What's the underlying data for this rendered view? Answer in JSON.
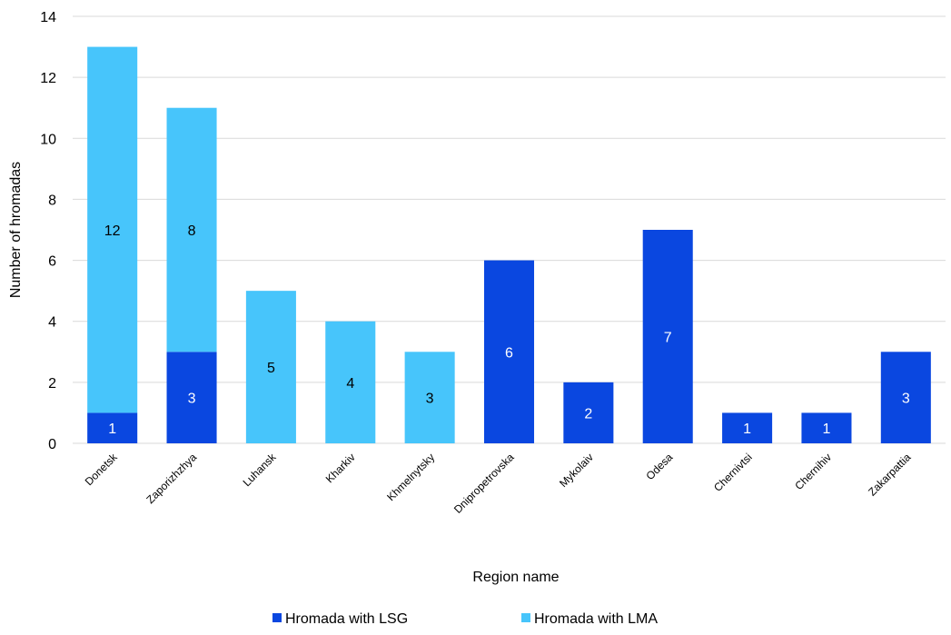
{
  "chart_data": {
    "type": "bar",
    "stacked": true,
    "title": "",
    "xlabel": "Region name",
    "ylabel": "Number of hromadas",
    "ylim": [
      0,
      14
    ],
    "yticks": [
      0,
      2,
      4,
      6,
      8,
      10,
      12,
      14
    ],
    "grid": true,
    "legend_position": "bottom",
    "categories": [
      "Donetsk",
      "Zaporizhzhya",
      "Luhansk",
      "Kharkiv",
      "Khmelnytsky",
      "Dnipropetrovska",
      "Mykolaiv",
      "Odesa",
      "Chernivtsi",
      "Chernihiv",
      "Zakarpattia"
    ],
    "series": [
      {
        "name": "Hromada with LSG",
        "color": "#0a47e0",
        "label_color": "#ffffff",
        "values": [
          1,
          3,
          0,
          0,
          0,
          6,
          2,
          7,
          1,
          1,
          3
        ]
      },
      {
        "name": "Hromada with LMA",
        "color": "#47c5fb",
        "label_color": "#000000",
        "values": [
          12,
          8,
          5,
          4,
          3,
          0,
          0,
          0,
          0,
          0,
          0
        ]
      }
    ]
  }
}
